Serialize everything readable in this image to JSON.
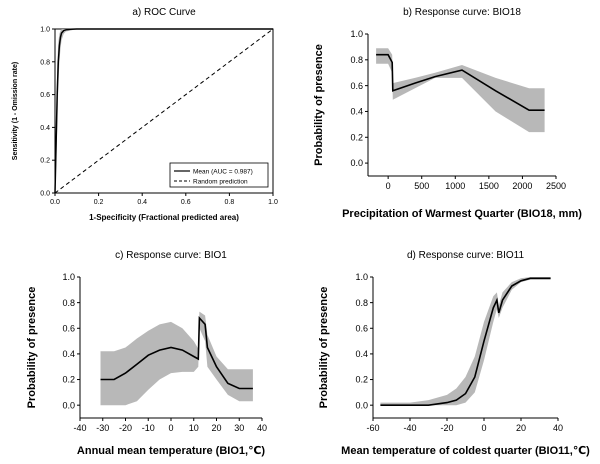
{
  "chart_data": [
    {
      "id": "a",
      "type": "line",
      "title": "a) ROC Curve",
      "xlabel": "1-Specificity (Fractional predicted area)",
      "ylabel": "Sensitivity (1 - Omission rate)",
      "xlim": [
        0,
        1
      ],
      "ylim": [
        0,
        1
      ],
      "xticks": [
        "0.0",
        "0.2",
        "0.4",
        "0.6",
        "0.8",
        "1.0"
      ],
      "yticks": [
        "0.0",
        "0.2",
        "0.4",
        "0.6",
        "0.8",
        "1.0"
      ],
      "xtick_values": [
        0,
        0.2,
        0.4,
        0.6,
        0.8,
        1.0
      ],
      "ytick_values": [
        0,
        0.2,
        0.4,
        0.6,
        0.8,
        1.0
      ],
      "series": [
        {
          "name": "Mean (AUC = 0.987)",
          "style": "solid",
          "x": [
            0,
            0.005,
            0.01,
            0.015,
            0.02,
            0.025,
            0.03,
            0.04,
            0.05,
            0.07,
            0.1,
            0.2,
            0.5,
            1.0
          ],
          "y": [
            0,
            0.3,
            0.6,
            0.8,
            0.9,
            0.95,
            0.975,
            0.99,
            0.995,
            0.998,
            1.0,
            1.0,
            1.0,
            1.0
          ],
          "lower": [
            0,
            0.15,
            0.4,
            0.65,
            0.8,
            0.88,
            0.93,
            0.97,
            0.985,
            0.99,
            1.0,
            1.0,
            1.0,
            1.0
          ],
          "upper": [
            0,
            0.45,
            0.78,
            0.92,
            0.97,
            0.99,
            1.0,
            1.0,
            1.0,
            1.0,
            1.0,
            1.0,
            1.0,
            1.0
          ]
        },
        {
          "name": "Random prediction",
          "style": "dashed",
          "x": [
            0,
            1
          ],
          "y": [
            0,
            1
          ]
        }
      ],
      "legend": "bottom-right"
    },
    {
      "id": "b",
      "type": "line",
      "title": "b) Response curve:  BIO18",
      "xlabel": "Precipitation of Warmest Quarter (BIO18, mm)",
      "ylabel": "Probability of presence",
      "xlim": [
        -300,
        2500
      ],
      "ylim": [
        -0.1,
        1.0
      ],
      "xticks": [
        "0",
        "500",
        "1000",
        "1500",
        "2000",
        "2500"
      ],
      "yticks": [
        "0.0",
        "0.2",
        "0.4",
        "0.6",
        "0.8",
        "1.0"
      ],
      "xtick_values": [
        0,
        500,
        1000,
        1500,
        2000,
        2500
      ],
      "ytick_values": [
        0,
        0.2,
        0.4,
        0.6,
        0.8,
        1.0
      ],
      "x": [
        -180,
        -100,
        0,
        60,
        70,
        400,
        700,
        1100,
        1600,
        2100,
        2330
      ],
      "mean": [
        0.84,
        0.84,
        0.84,
        0.78,
        0.56,
        0.62,
        0.67,
        0.72,
        0.56,
        0.41,
        0.41
      ],
      "lower": [
        0.77,
        0.77,
        0.77,
        0.7,
        0.49,
        0.58,
        0.66,
        0.66,
        0.4,
        0.24,
        0.24
      ],
      "upper": [
        0.89,
        0.89,
        0.89,
        0.84,
        0.62,
        0.66,
        0.7,
        0.76,
        0.66,
        0.58,
        0.58
      ]
    },
    {
      "id": "c",
      "type": "line",
      "title": "c) Response curve:  BIO1",
      "xlabel": "Annual mean temperature (BIO1,℃)",
      "ylabel": "Probability of presence",
      "xlim": [
        -40,
        40
      ],
      "ylim": [
        -0.1,
        1.0
      ],
      "xticks": [
        "-40",
        "-30",
        "-20",
        "-10",
        "0",
        "10",
        "20",
        "30",
        "40"
      ],
      "yticks": [
        "0.0",
        "0.2",
        "0.4",
        "0.6",
        "0.8",
        "1.0"
      ],
      "xtick_values": [
        -40,
        -30,
        -20,
        -10,
        0,
        10,
        20,
        30,
        40
      ],
      "ytick_values": [
        0,
        0.2,
        0.4,
        0.6,
        0.8,
        1.0
      ],
      "x": [
        -31,
        -25,
        -20,
        -15,
        -10,
        -5,
        0,
        5,
        10,
        12,
        12.5,
        15,
        16,
        20,
        25,
        30,
        36
      ],
      "mean": [
        0.2,
        0.2,
        0.25,
        0.32,
        0.39,
        0.43,
        0.45,
        0.43,
        0.38,
        0.36,
        0.68,
        0.63,
        0.45,
        0.3,
        0.17,
        0.13,
        0.13
      ],
      "lower": [
        0.0,
        0.0,
        0.0,
        0.03,
        0.12,
        0.2,
        0.25,
        0.26,
        0.26,
        0.3,
        0.6,
        0.5,
        0.3,
        0.2,
        0.08,
        0.03,
        0.03
      ],
      "upper": [
        0.42,
        0.42,
        0.45,
        0.52,
        0.58,
        0.63,
        0.65,
        0.6,
        0.5,
        0.44,
        0.73,
        0.7,
        0.55,
        0.38,
        0.28,
        0.28,
        0.28
      ]
    },
    {
      "id": "d",
      "type": "line",
      "title": "d) Response curve:  BIO11",
      "xlabel": "Mean temperature of coldest quarter (BIO11,℃)",
      "ylabel": "Probability of presence",
      "xlim": [
        -60,
        40
      ],
      "ylim": [
        -0.1,
        1.0
      ],
      "xticks": [
        "-60",
        "-40",
        "-20",
        "0",
        "20",
        "40"
      ],
      "yticks": [
        "0.0",
        "0.2",
        "0.4",
        "0.6",
        "0.8",
        "1.0"
      ],
      "xtick_values": [
        -60,
        -40,
        -20,
        0,
        20,
        40
      ],
      "ytick_values": [
        0,
        0.2,
        0.4,
        0.6,
        0.8,
        1.0
      ],
      "x": [
        -56,
        -40,
        -30,
        -20,
        -15,
        -10,
        -5,
        0,
        5,
        7,
        8,
        10,
        15,
        20,
        25,
        30,
        36
      ],
      "mean": [
        0.0,
        0.0,
        0.0,
        0.02,
        0.04,
        0.09,
        0.22,
        0.5,
        0.76,
        0.82,
        0.72,
        0.82,
        0.93,
        0.97,
        0.99,
        0.99,
        0.99
      ],
      "lower": [
        0.0,
        0.0,
        0.0,
        0.0,
        0.0,
        0.02,
        0.1,
        0.35,
        0.65,
        0.75,
        0.68,
        0.76,
        0.9,
        0.96,
        0.98,
        0.98,
        0.98
      ],
      "upper": [
        0.02,
        0.02,
        0.04,
        0.08,
        0.13,
        0.22,
        0.38,
        0.65,
        0.85,
        0.88,
        0.78,
        0.88,
        0.96,
        0.99,
        1.0,
        1.0,
        1.0
      ]
    }
  ]
}
